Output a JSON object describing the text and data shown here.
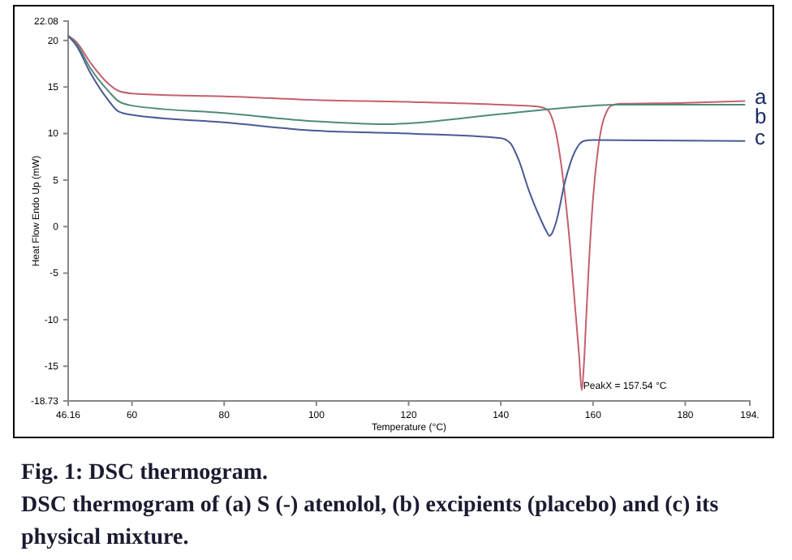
{
  "chart_data": {
    "type": "line",
    "title": "Fig. 1: DSC thermogram.",
    "subtitle": "DSC thermogram of (a) S (-) atenolol, (b) excipients (placebo) and (c) its physical mixture.",
    "xlabel": "Temperature (°C)",
    "ylabel": "Heat Flow Endo Up (mW)",
    "xlim": [
      46.16,
      194
    ],
    "xticks": [
      46.16,
      60,
      80,
      100,
      120,
      140,
      160,
      180,
      {
        "value": 194,
        "label": "194."
      }
    ],
    "ylim": [
      -18.73,
      22.08
    ],
    "yticks": [
      -18.73,
      -15,
      -10,
      -5,
      0,
      5,
      10,
      15,
      20,
      22.08
    ],
    "grid": false,
    "legend": false,
    "marker": "none",
    "line_style": "solid",
    "annotations": [
      {
        "text": "PeakX = 157.54 °C",
        "x": 157.54,
        "y": -17.6
      }
    ],
    "series": [
      {
        "name": "a",
        "color": "#c4606e",
        "x": [
          46.16,
          48,
          51,
          55,
          57,
          60,
          70,
          80,
          100,
          120,
          140,
          148,
          150,
          151,
          152,
          153,
          154,
          155,
          156,
          157,
          157.54,
          158,
          158.5,
          159,
          160,
          161,
          162,
          163,
          164,
          166,
          180,
          193
        ],
        "values": [
          20.5,
          19.8,
          17.6,
          15.3,
          14.6,
          14.3,
          14.1,
          14.0,
          13.6,
          13.4,
          13.1,
          12.9,
          12.6,
          11.8,
          10,
          7,
          3,
          -2,
          -8,
          -14,
          -17.6,
          -15,
          -10,
          -5,
          3,
          8,
          11,
          12.4,
          13,
          13.2,
          13.3,
          13.5
        ]
      },
      {
        "name": "b",
        "color": "#4e8a7a",
        "x": [
          46.16,
          48,
          51,
          55,
          57,
          60,
          80,
          100,
          115,
          120,
          140,
          160,
          165,
          193
        ],
        "values": [
          20.5,
          19.6,
          17.0,
          14.5,
          13.5,
          13.0,
          12.2,
          11.3,
          11.0,
          11.1,
          12.1,
          13.0,
          13.1,
          13.1
        ]
      },
      {
        "name": "c",
        "color": "#4a5a92",
        "x": [
          46.16,
          48,
          51,
          55,
          57,
          60,
          80,
          100,
          120,
          140,
          142,
          144,
          146,
          148,
          150,
          150.5,
          151,
          152,
          154,
          156,
          158,
          160,
          193
        ],
        "values": [
          20.5,
          19.4,
          16.5,
          13.5,
          12.4,
          12.0,
          11.2,
          10.3,
          10.0,
          9.5,
          9.0,
          7,
          4,
          1.5,
          -0.6,
          -1.0,
          -0.8,
          0.5,
          5,
          8,
          9.2,
          9.3,
          9.2
        ]
      }
    ]
  }
}
